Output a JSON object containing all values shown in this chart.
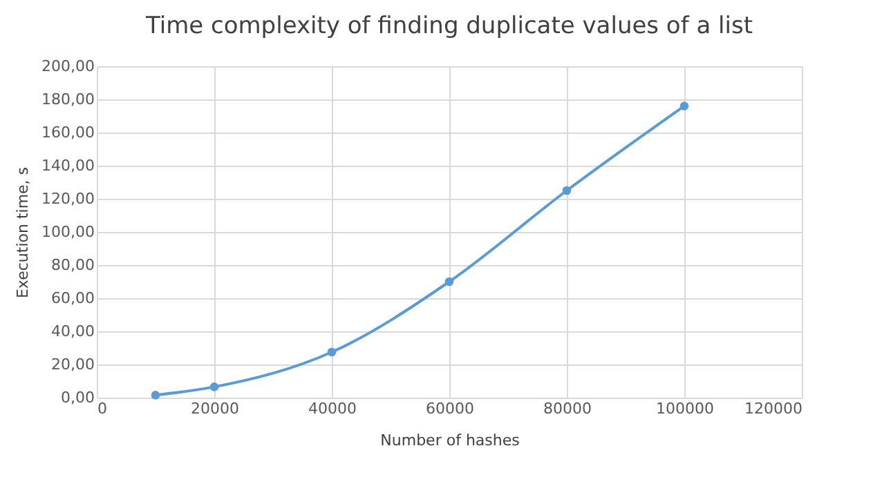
{
  "chart_data": {
    "type": "line",
    "title": "Time complexity of finding duplicate values of a list",
    "xlabel": "Number  of hashes",
    "ylabel": "Execution time,  s",
    "x": [
      10000,
      20000,
      40000,
      60000,
      80000,
      100000
    ],
    "series": [
      {
        "color": "#5b9bd5",
        "values": [
          1.5,
          6.5,
          27.5,
          70,
          125,
          176
        ]
      }
    ],
    "xlim": [
      0,
      120000
    ],
    "xticks": [
      0,
      20000,
      40000,
      60000,
      80000,
      100000,
      120000
    ],
    "ylim": [
      0,
      200
    ],
    "yticks": [
      {
        "value": 0,
        "label": "0,00"
      },
      {
        "value": 20,
        "label": "20,00"
      },
      {
        "value": 40,
        "label": "40,00"
      },
      {
        "value": 60,
        "label": "60,00"
      },
      {
        "value": 80,
        "label": "80,00"
      },
      {
        "value": 100,
        "label": "100,00"
      },
      {
        "value": 120,
        "label": "120,00"
      },
      {
        "value": 140,
        "label": "140,00"
      },
      {
        "value": 160,
        "label": "160,00"
      },
      {
        "value": 180,
        "label": "180,00"
      },
      {
        "value": 200,
        "label": "200,00"
      }
    ],
    "grid": true,
    "marker": "circle",
    "line_style": "solid"
  }
}
